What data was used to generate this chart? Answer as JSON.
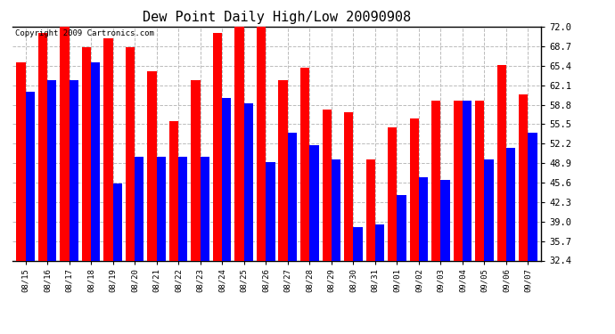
{
  "title": "Dew Point Daily High/Low 20090908",
  "copyright": "Copyright 2009 Cartronics.com",
  "dates": [
    "08/15",
    "08/16",
    "08/17",
    "08/18",
    "08/19",
    "08/20",
    "08/21",
    "08/22",
    "08/23",
    "08/24",
    "08/25",
    "08/26",
    "08/27",
    "08/28",
    "08/29",
    "08/30",
    "08/31",
    "09/01",
    "09/02",
    "09/03",
    "09/04",
    "09/05",
    "09/06",
    "09/07"
  ],
  "highs": [
    66.0,
    71.0,
    72.0,
    68.5,
    70.0,
    68.5,
    64.5,
    56.0,
    63.0,
    71.0,
    72.0,
    72.0,
    63.0,
    65.0,
    58.0,
    57.5,
    49.5,
    55.0,
    56.5,
    59.5,
    59.5,
    59.5,
    65.5,
    60.5
  ],
  "lows": [
    61.0,
    63.0,
    63.0,
    66.0,
    45.5,
    50.0,
    50.0,
    50.0,
    50.0,
    60.0,
    59.0,
    49.0,
    54.0,
    52.0,
    49.5,
    38.0,
    38.5,
    43.5,
    46.5,
    46.0,
    59.5,
    49.5,
    51.5,
    54.0
  ],
  "high_color": "#ff0000",
  "low_color": "#0000ff",
  "bg_color": "#ffffff",
  "grid_color": "#bbbbbb",
  "yticks": [
    32.4,
    35.7,
    39.0,
    42.3,
    45.6,
    48.9,
    52.2,
    55.5,
    58.8,
    62.1,
    65.4,
    68.7,
    72.0
  ],
  "ymin": 32.4,
  "ymax": 72.0,
  "bar_width": 0.42
}
